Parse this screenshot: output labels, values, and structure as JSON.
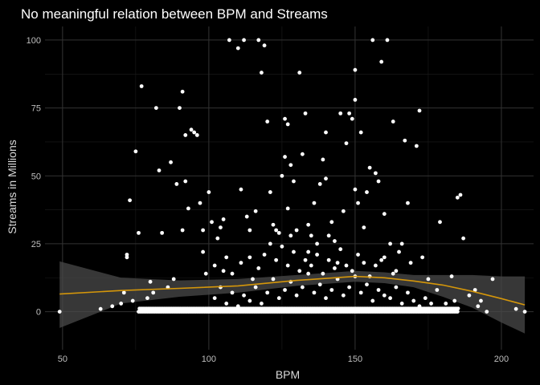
{
  "chart_data": {
    "type": "scatter",
    "title": "No meaningful relation between BPM and Streams",
    "xlabel": "BPM",
    "ylabel": "Streams in Millions",
    "xlim": [
      44,
      211
    ],
    "ylim": [
      -14,
      105
    ],
    "x_ticks": [
      50,
      100,
      150,
      200
    ],
    "y_ticks": [
      0,
      25,
      50,
      75,
      100
    ],
    "grid": true,
    "colors": {
      "background": "#000000",
      "grid_major": "#333333",
      "grid_minor": "#1c1c1c",
      "points": "#ffffff",
      "trend": "#d4960a",
      "band": "#4a4a4a"
    },
    "points": [
      [
        49,
        0
      ],
      [
        63,
        1
      ],
      [
        67,
        2
      ],
      [
        70,
        3
      ],
      [
        71,
        7
      ],
      [
        72,
        20
      ],
      [
        72,
        21
      ],
      [
        73,
        41
      ],
      [
        74,
        4
      ],
      [
        75,
        59
      ],
      [
        76,
        29
      ],
      [
        77,
        83
      ],
      [
        79,
        5
      ],
      [
        80,
        11
      ],
      [
        81,
        7
      ],
      [
        82,
        75
      ],
      [
        83,
        52
      ],
      [
        84,
        29
      ],
      [
        86,
        9
      ],
      [
        87,
        55
      ],
      [
        88,
        12
      ],
      [
        89,
        47
      ],
      [
        90,
        75
      ],
      [
        91,
        81
      ],
      [
        91,
        30
      ],
      [
        92,
        65
      ],
      [
        92,
        48
      ],
      [
        93,
        38
      ],
      [
        94,
        67
      ],
      [
        95,
        66
      ],
      [
        96,
        65
      ],
      [
        97,
        40
      ],
      [
        98,
        30
      ],
      [
        98,
        22
      ],
      [
        99,
        14
      ],
      [
        100,
        44
      ],
      [
        101,
        33
      ],
      [
        102,
        17
      ],
      [
        103,
        27
      ],
      [
        104,
        31
      ],
      [
        105,
        34
      ],
      [
        106,
        20
      ],
      [
        107,
        100
      ],
      [
        108,
        14
      ],
      [
        110,
        97
      ],
      [
        111,
        45
      ],
      [
        112,
        100
      ],
      [
        113,
        35
      ],
      [
        114,
        30
      ],
      [
        114,
        20
      ],
      [
        115,
        12
      ],
      [
        116,
        37
      ],
      [
        117,
        100
      ],
      [
        118,
        88
      ],
      [
        119,
        98
      ],
      [
        120,
        70
      ],
      [
        121,
        44
      ],
      [
        121,
        25
      ],
      [
        122,
        32
      ],
      [
        123,
        30
      ],
      [
        124,
        29
      ],
      [
        125,
        50
      ],
      [
        126,
        71
      ],
      [
        126,
        57
      ],
      [
        127,
        69
      ],
      [
        127,
        38
      ],
      [
        128,
        54
      ],
      [
        128,
        28
      ],
      [
        129,
        48
      ],
      [
        130,
        30
      ],
      [
        131,
        88
      ],
      [
        132,
        58
      ],
      [
        133,
        73
      ],
      [
        134,
        22
      ],
      [
        134,
        32
      ],
      [
        135,
        28
      ],
      [
        136,
        40
      ],
      [
        137,
        25
      ],
      [
        138,
        47
      ],
      [
        139,
        56
      ],
      [
        140,
        66
      ],
      [
        140,
        49
      ],
      [
        141,
        28
      ],
      [
        142,
        33
      ],
      [
        143,
        26
      ],
      [
        144,
        18
      ],
      [
        145,
        73
      ],
      [
        146,
        37
      ],
      [
        147,
        62
      ],
      [
        148,
        73
      ],
      [
        149,
        71
      ],
      [
        150,
        89
      ],
      [
        150,
        78
      ],
      [
        150,
        45
      ],
      [
        151,
        40
      ],
      [
        152,
        66
      ],
      [
        153,
        31
      ],
      [
        154,
        44
      ],
      [
        155,
        53
      ],
      [
        156,
        100
      ],
      [
        157,
        51
      ],
      [
        158,
        48
      ],
      [
        159,
        92
      ],
      [
        160,
        36
      ],
      [
        160,
        20
      ],
      [
        161,
        100
      ],
      [
        162,
        25
      ],
      [
        163,
        70
      ],
      [
        164,
        15
      ],
      [
        165,
        22
      ],
      [
        166,
        25
      ],
      [
        167,
        63
      ],
      [
        168,
        40
      ],
      [
        169,
        18
      ],
      [
        171,
        61
      ],
      [
        172,
        74
      ],
      [
        173,
        20
      ],
      [
        175,
        12
      ],
      [
        178,
        8
      ],
      [
        179,
        33
      ],
      [
        181,
        3
      ],
      [
        183,
        13
      ],
      [
        184,
        4
      ],
      [
        185,
        42
      ],
      [
        186,
        43
      ],
      [
        187,
        27
      ],
      [
        189,
        6
      ],
      [
        191,
        8
      ],
      [
        192,
        2
      ],
      [
        193,
        4
      ],
      [
        195,
        0
      ],
      [
        197,
        12
      ],
      [
        205,
        1
      ],
      [
        208,
        0
      ],
      [
        102,
        5
      ],
      [
        104,
        9
      ],
      [
        106,
        3
      ],
      [
        108,
        7
      ],
      [
        110,
        2
      ],
      [
        112,
        6
      ],
      [
        114,
        4
      ],
      [
        116,
        9
      ],
      [
        118,
        3
      ],
      [
        120,
        7
      ],
      [
        122,
        12
      ],
      [
        124,
        5
      ],
      [
        126,
        8
      ],
      [
        128,
        11
      ],
      [
        130,
        6
      ],
      [
        132,
        9
      ],
      [
        134,
        14
      ],
      [
        136,
        7
      ],
      [
        138,
        10
      ],
      [
        140,
        5
      ],
      [
        142,
        8
      ],
      [
        144,
        12
      ],
      [
        146,
        6
      ],
      [
        148,
        9
      ],
      [
        150,
        13
      ],
      [
        152,
        7
      ],
      [
        154,
        10
      ],
      [
        156,
        4
      ],
      [
        158,
        8
      ],
      [
        160,
        6
      ],
      [
        162,
        5
      ],
      [
        164,
        9
      ],
      [
        166,
        3
      ],
      [
        168,
        7
      ],
      [
        170,
        4
      ],
      [
        172,
        2
      ],
      [
        174,
        5
      ],
      [
        176,
        3
      ],
      [
        105,
        15
      ],
      [
        111,
        18
      ],
      [
        117,
        16
      ],
      [
        119,
        21
      ],
      [
        123,
        19
      ],
      [
        125,
        24
      ],
      [
        127,
        17
      ],
      [
        129,
        22
      ],
      [
        131,
        15
      ],
      [
        133,
        19
      ],
      [
        135,
        17
      ],
      [
        137,
        21
      ],
      [
        139,
        14
      ],
      [
        141,
        19
      ],
      [
        143,
        16
      ],
      [
        145,
        23
      ],
      [
        147,
        17
      ],
      [
        149,
        15
      ],
      [
        151,
        21
      ],
      [
        153,
        18
      ],
      [
        155,
        13
      ],
      [
        157,
        17
      ],
      [
        159,
        19
      ],
      [
        163,
        14
      ]
    ],
    "dense_zero_band": [
      76,
      185
    ],
    "trend": {
      "x": [
        49,
        70,
        90,
        110,
        130,
        150,
        160,
        170,
        180,
        190,
        200,
        208
      ],
      "y": [
        6.5,
        7.8,
        8.6,
        9.5,
        11.5,
        13,
        12.5,
        11.3,
        9.8,
        7.5,
        4.8,
        2.5
      ],
      "lower": [
        -6,
        3,
        5.5,
        7,
        9.5,
        11,
        10.5,
        9,
        5.5,
        1.5,
        -4,
        -8
      ],
      "upper": [
        18.5,
        12.5,
        11.5,
        12,
        13.5,
        15,
        14.5,
        13.5,
        13.5,
        13.5,
        13,
        13
      ]
    }
  }
}
